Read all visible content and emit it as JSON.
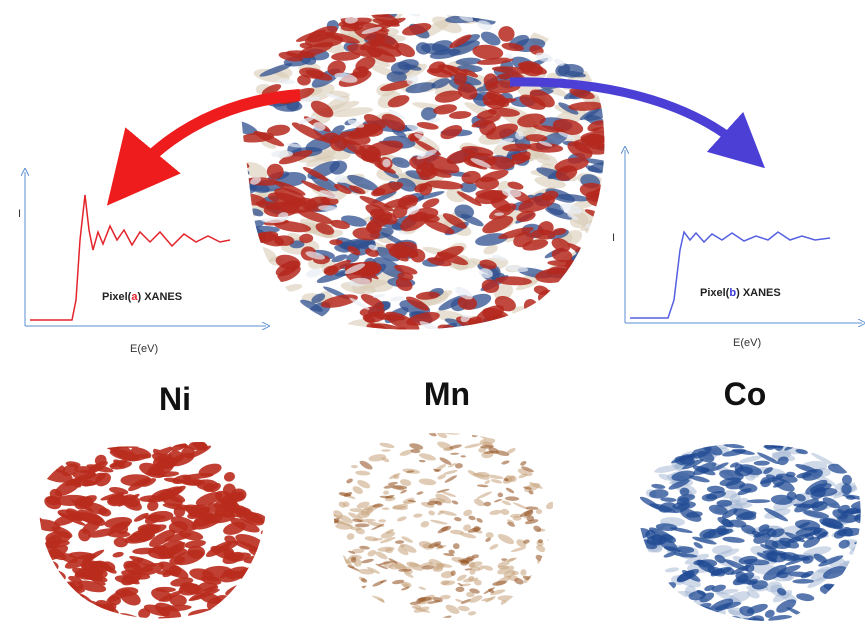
{
  "left_plot": {
    "y_label": "I",
    "x_label": "E(eV)",
    "legend": {
      "prefix": "Pixel(",
      "mark": "a",
      "suffix": ") XANES"
    }
  },
  "right_plot": {
    "y_label": "I",
    "x_label": "E(eV)",
    "legend": {
      "prefix": "Pixel(",
      "mark": "b",
      "suffix": ") XANES"
    }
  },
  "elements": [
    "Ni",
    "Mn",
    "Co"
  ]
}
